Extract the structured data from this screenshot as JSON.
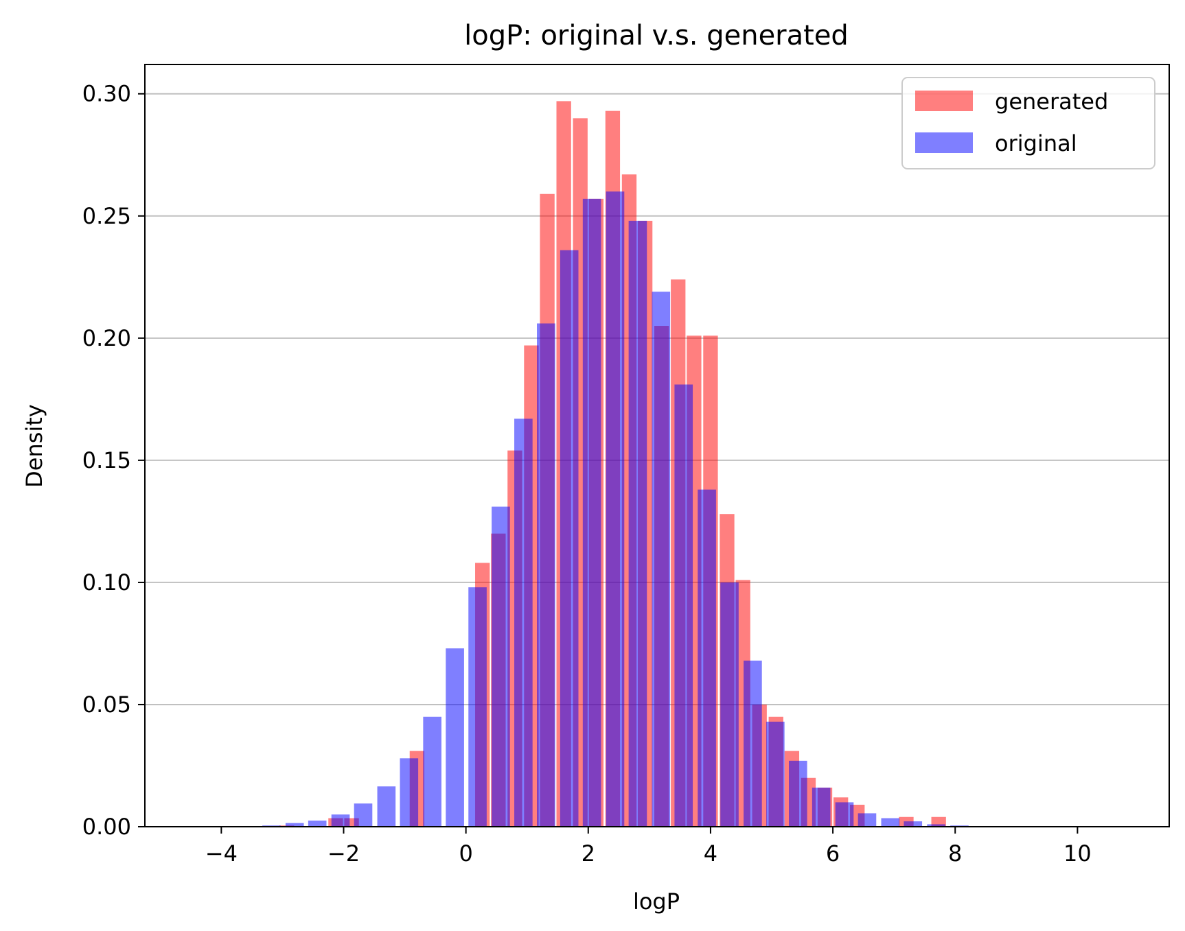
{
  "chart_data": {
    "type": "bar",
    "title": "logP: original v.s. generated",
    "xlabel": "logP",
    "ylabel": "Density",
    "xlim": [
      -5.25,
      11.5
    ],
    "ylim": [
      0,
      0.312
    ],
    "xticks": [
      -4,
      -2,
      0,
      2,
      4,
      6,
      8,
      10
    ],
    "xtick_labels": [
      "−4",
      "−2",
      "0",
      "2",
      "4",
      "6",
      "8",
      "10"
    ],
    "yticks": [
      0.0,
      0.05,
      0.1,
      0.15,
      0.2,
      0.25,
      0.3
    ],
    "ytick_labels": [
      "0.00",
      "0.05",
      "0.10",
      "0.15",
      "0.20",
      "0.25",
      "0.30"
    ],
    "grid": "y",
    "legend_position": "upper right",
    "series": [
      {
        "name": "generated",
        "color": "#ff0000",
        "opacity": 0.5,
        "bin_width": 0.266,
        "x": [
          -2.93,
          -2.13,
          -1.87,
          -0.8,
          0.27,
          0.53,
          0.8,
          1.07,
          1.33,
          1.6,
          1.87,
          2.13,
          2.4,
          2.67,
          2.93,
          3.2,
          3.47,
          3.73,
          4.0,
          4.27,
          4.53,
          4.8,
          5.07,
          5.33,
          5.6,
          5.87,
          6.13,
          6.4,
          7.2,
          7.73
        ],
        "values": [
          0.0005,
          0.0035,
          0.0035,
          0.031,
          0.108,
          0.12,
          0.154,
          0.197,
          0.259,
          0.297,
          0.29,
          0.257,
          0.293,
          0.267,
          0.248,
          0.205,
          0.224,
          0.201,
          0.201,
          0.128,
          0.101,
          0.05,
          0.045,
          0.031,
          0.02,
          0.016,
          0.012,
          0.009,
          0.004,
          0.004
        ]
      },
      {
        "name": "original",
        "color": "#0000ff",
        "opacity": 0.5,
        "bin_width": 0.332,
        "x": [
          -3.18,
          -2.8,
          -2.43,
          -2.05,
          -1.68,
          -1.3,
          -0.93,
          -0.55,
          -0.18,
          0.19,
          0.57,
          0.94,
          1.31,
          1.69,
          2.06,
          2.44,
          2.81,
          3.19,
          3.56,
          3.94,
          4.31,
          4.69,
          5.06,
          5.43,
          5.81,
          6.19,
          6.56,
          6.94,
          7.31,
          7.69,
          8.07,
          8.43
        ],
        "values": [
          0.0005,
          0.0015,
          0.0025,
          0.005,
          0.0095,
          0.0165,
          0.028,
          0.045,
          0.073,
          0.098,
          0.131,
          0.167,
          0.206,
          0.236,
          0.257,
          0.26,
          0.248,
          0.219,
          0.181,
          0.138,
          0.1,
          0.068,
          0.043,
          0.027,
          0.016,
          0.01,
          0.0055,
          0.0035,
          0.0022,
          0.001,
          0.0005,
          0.0002
        ]
      }
    ]
  }
}
